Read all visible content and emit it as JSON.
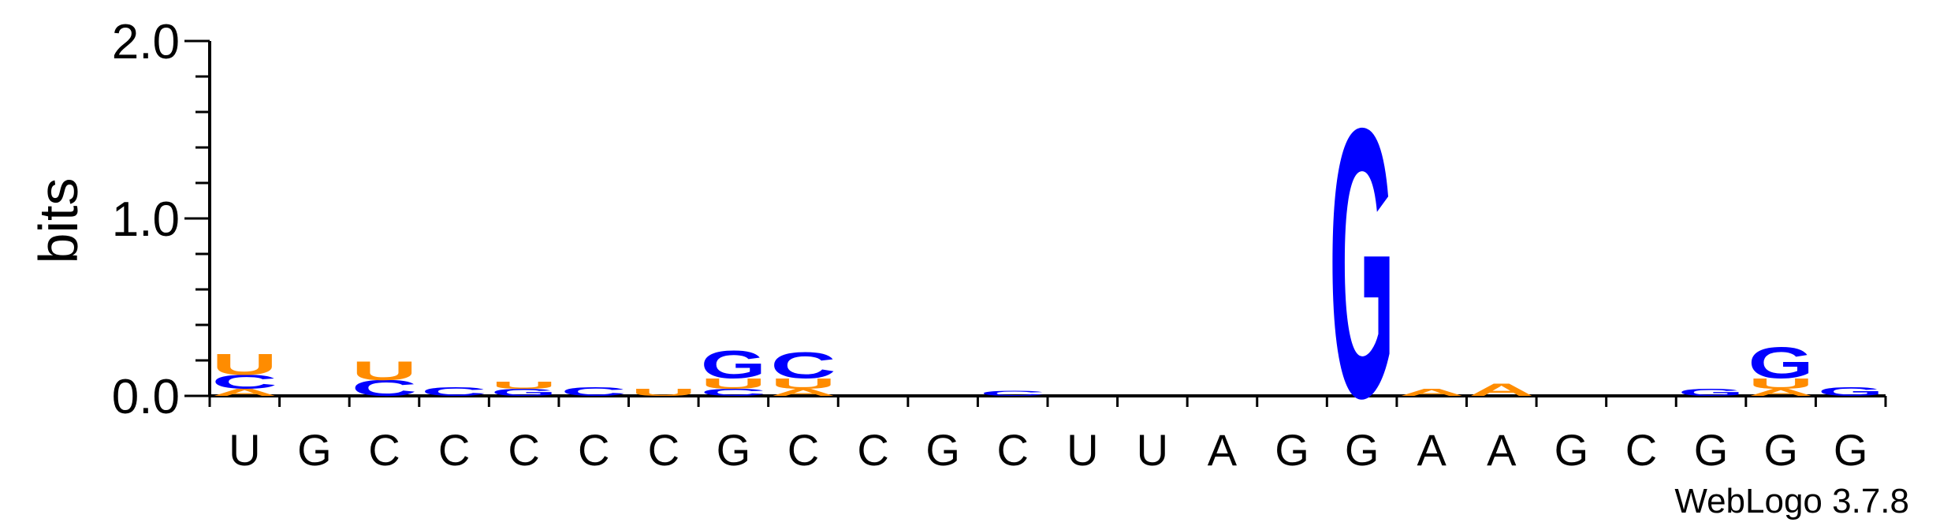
{
  "chart_data": {
    "type": "sequence-logo",
    "title": "",
    "ylabel": "bits",
    "xlabel": "",
    "ylim": [
      0,
      2.0
    ],
    "yticks": [
      "0.0",
      "1.0",
      "2.0"
    ],
    "grid": false,
    "legend": "none",
    "colors": {
      "A": "#FF8C00",
      "U": "#FF8C00",
      "G": "#0000FF",
      "C": "#0000FF"
    },
    "positions": [
      {
        "label": "U",
        "stack": [
          {
            "letter": "A",
            "bits": 0.04
          },
          {
            "letter": "C",
            "bits": 0.08
          },
          {
            "letter": "U",
            "bits": 0.12
          }
        ]
      },
      {
        "label": "G",
        "stack": []
      },
      {
        "label": "C",
        "stack": [
          {
            "letter": "C",
            "bits": 0.09
          },
          {
            "letter": "U",
            "bits": 0.11
          }
        ]
      },
      {
        "label": "C",
        "stack": [
          {
            "letter": "C",
            "bits": 0.05
          }
        ]
      },
      {
        "label": "C",
        "stack": [
          {
            "letter": "G",
            "bits": 0.04
          },
          {
            "letter": "U",
            "bits": 0.04
          }
        ]
      },
      {
        "label": "C",
        "stack": [
          {
            "letter": "C",
            "bits": 0.05
          }
        ]
      },
      {
        "label": "C",
        "stack": [
          {
            "letter": "U",
            "bits": 0.04
          }
        ]
      },
      {
        "label": "G",
        "stack": [
          {
            "letter": "C",
            "bits": 0.04
          },
          {
            "letter": "U",
            "bits": 0.06
          },
          {
            "letter": "G",
            "bits": 0.16
          }
        ]
      },
      {
        "label": "C",
        "stack": [
          {
            "letter": "A",
            "bits": 0.04
          },
          {
            "letter": "U",
            "bits": 0.06
          },
          {
            "letter": "C",
            "bits": 0.15
          }
        ]
      },
      {
        "label": "C",
        "stack": []
      },
      {
        "label": "G",
        "stack": []
      },
      {
        "label": "C",
        "stack": [
          {
            "letter": "C",
            "bits": 0.03
          }
        ]
      },
      {
        "label": "U",
        "stack": []
      },
      {
        "label": "U",
        "stack": []
      },
      {
        "label": "A",
        "stack": []
      },
      {
        "label": "G",
        "stack": []
      },
      {
        "label": "G",
        "stack": [
          {
            "letter": "G",
            "bits": 1.55
          }
        ]
      },
      {
        "label": "A",
        "stack": [
          {
            "letter": "A",
            "bits": 0.04
          }
        ]
      },
      {
        "label": "A",
        "stack": [
          {
            "letter": "A",
            "bits": 0.07
          }
        ]
      },
      {
        "label": "G",
        "stack": []
      },
      {
        "label": "C",
        "stack": []
      },
      {
        "label": "G",
        "stack": [
          {
            "letter": "G",
            "bits": 0.04
          }
        ]
      },
      {
        "label": "G",
        "stack": [
          {
            "letter": "A",
            "bits": 0.04
          },
          {
            "letter": "U",
            "bits": 0.06
          },
          {
            "letter": "G",
            "bits": 0.18
          }
        ]
      },
      {
        "label": "G",
        "stack": [
          {
            "letter": "G",
            "bits": 0.05
          }
        ]
      }
    ]
  },
  "credit": "WebLogo 3.7.8"
}
